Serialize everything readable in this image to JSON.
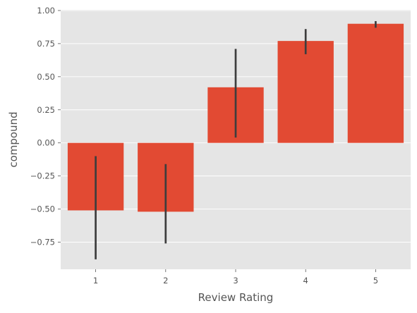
{
  "chart_data": {
    "type": "bar",
    "title": "",
    "xlabel": "Review Rating",
    "ylabel": "compound",
    "categories": [
      "1",
      "2",
      "3",
      "4",
      "5"
    ],
    "values": [
      -0.51,
      -0.52,
      0.42,
      0.77,
      0.9
    ],
    "error_bars": [
      {
        "low": -0.88,
        "high": -0.1
      },
      {
        "low": -0.76,
        "high": -0.16
      },
      {
        "low": 0.04,
        "high": 0.71
      },
      {
        "low": 0.67,
        "high": 0.86
      },
      {
        "low": 0.87,
        "high": 0.92
      }
    ],
    "ylim": [
      -0.955,
      1.005
    ],
    "yticks": [
      -0.75,
      -0.5,
      -0.25,
      0.0,
      0.25,
      0.5,
      0.75,
      1.0
    ],
    "ytick_labels": [
      "−0.75",
      "−0.50",
      "−0.25",
      "0.00",
      "0.25",
      "0.50",
      "0.75",
      "1.00"
    ],
    "grid": true,
    "legend": "none",
    "colors": {
      "bar": "#E24A33",
      "background": "#E5E5E5",
      "gridline": "#FFFFFF",
      "errorbar": "#3D3D3D",
      "text": "#555555"
    }
  }
}
